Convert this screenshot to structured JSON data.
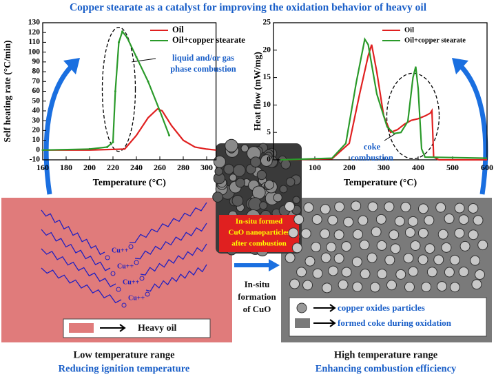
{
  "title": "Copper stearate as a catalyst for improving the oxidation behavior of heavy oil",
  "chart_data": [
    {
      "type": "line",
      "ylabel": "Self heating rate (°C/min)",
      "xlabel": "Temperature (°C)",
      "xlim": [
        160,
        308
      ],
      "ylim": [
        -10,
        130
      ],
      "xticks": [
        160,
        180,
        200,
        220,
        240,
        260,
        280,
        300
      ],
      "yticks": [
        -10,
        0,
        10,
        20,
        30,
        40,
        50,
        60,
        70,
        80,
        90,
        100,
        110,
        120,
        130
      ],
      "annotation": "liquid and/or gas phase combustion",
      "series": [
        {
          "name": "Oil",
          "color": "#e02020",
          "x": [
            160,
            200,
            230,
            240,
            250,
            258,
            262,
            270,
            280,
            290,
            300,
            308
          ],
          "values": [
            0,
            0,
            1,
            15,
            33,
            42,
            40,
            25,
            10,
            3,
            1,
            0
          ]
        },
        {
          "name": "Oil+copper stearate",
          "color": "#2a9a2a",
          "x": [
            160,
            200,
            215,
            220,
            222,
            225,
            228,
            232,
            240,
            250,
            260,
            268
          ],
          "values": [
            0,
            1,
            3,
            8,
            60,
            110,
            121,
            115,
            95,
            70,
            40,
            15
          ]
        }
      ]
    },
    {
      "type": "line",
      "ylabel": "Heat flow (mW/mg)",
      "xlabel": "Temperature (°C)",
      "xlim": [
        -20,
        600
      ],
      "ylim": [
        0,
        25
      ],
      "xticks": [
        100,
        200,
        300,
        400,
        500,
        600
      ],
      "yticks": [
        0,
        5,
        10,
        15,
        20,
        25
      ],
      "annotation": "coke combustion",
      "series": [
        {
          "name": "Oil",
          "color": "#e02020",
          "x": [
            0,
            150,
            200,
            230,
            255,
            265,
            280,
            300,
            320,
            340,
            360,
            380,
            400,
            420,
            435,
            440,
            445,
            460,
            600
          ],
          "values": [
            0,
            0.2,
            3,
            12,
            19,
            21,
            16,
            8,
            5,
            5.5,
            6.5,
            7.2,
            7.5,
            8,
            8.5,
            9,
            0.5,
            0,
            0
          ]
        },
        {
          "name": "Oil+copper stearate",
          "color": "#2a9a2a",
          "x": [
            0,
            150,
            190,
            220,
            245,
            255,
            280,
            310,
            330,
            350,
            370,
            385,
            393,
            400,
            410,
            420,
            600
          ],
          "values": [
            0,
            0.3,
            3,
            14,
            22,
            21,
            12,
            6,
            4.8,
            5,
            7,
            15,
            17,
            13,
            2,
            0.5,
            0.3
          ]
        }
      ]
    }
  ],
  "cu_labels": [
    "Cu++",
    "Cu++",
    "Cu++",
    "Cu++"
  ],
  "heavy_oil": "Heavy oil",
  "sem_label": [
    "In-situ formed",
    "CuO nanoparticles",
    "after combustion"
  ],
  "formation": [
    "In-situ",
    "formation",
    "of CuO"
  ],
  "right_legend": [
    "copper oxides particles",
    "formed coke during oxidation"
  ],
  "captions": {
    "left": [
      "Low temperature range",
      "Reducing ignition temperature"
    ],
    "right": [
      "High temperature range",
      "Enhancing combustion efficiency"
    ]
  }
}
